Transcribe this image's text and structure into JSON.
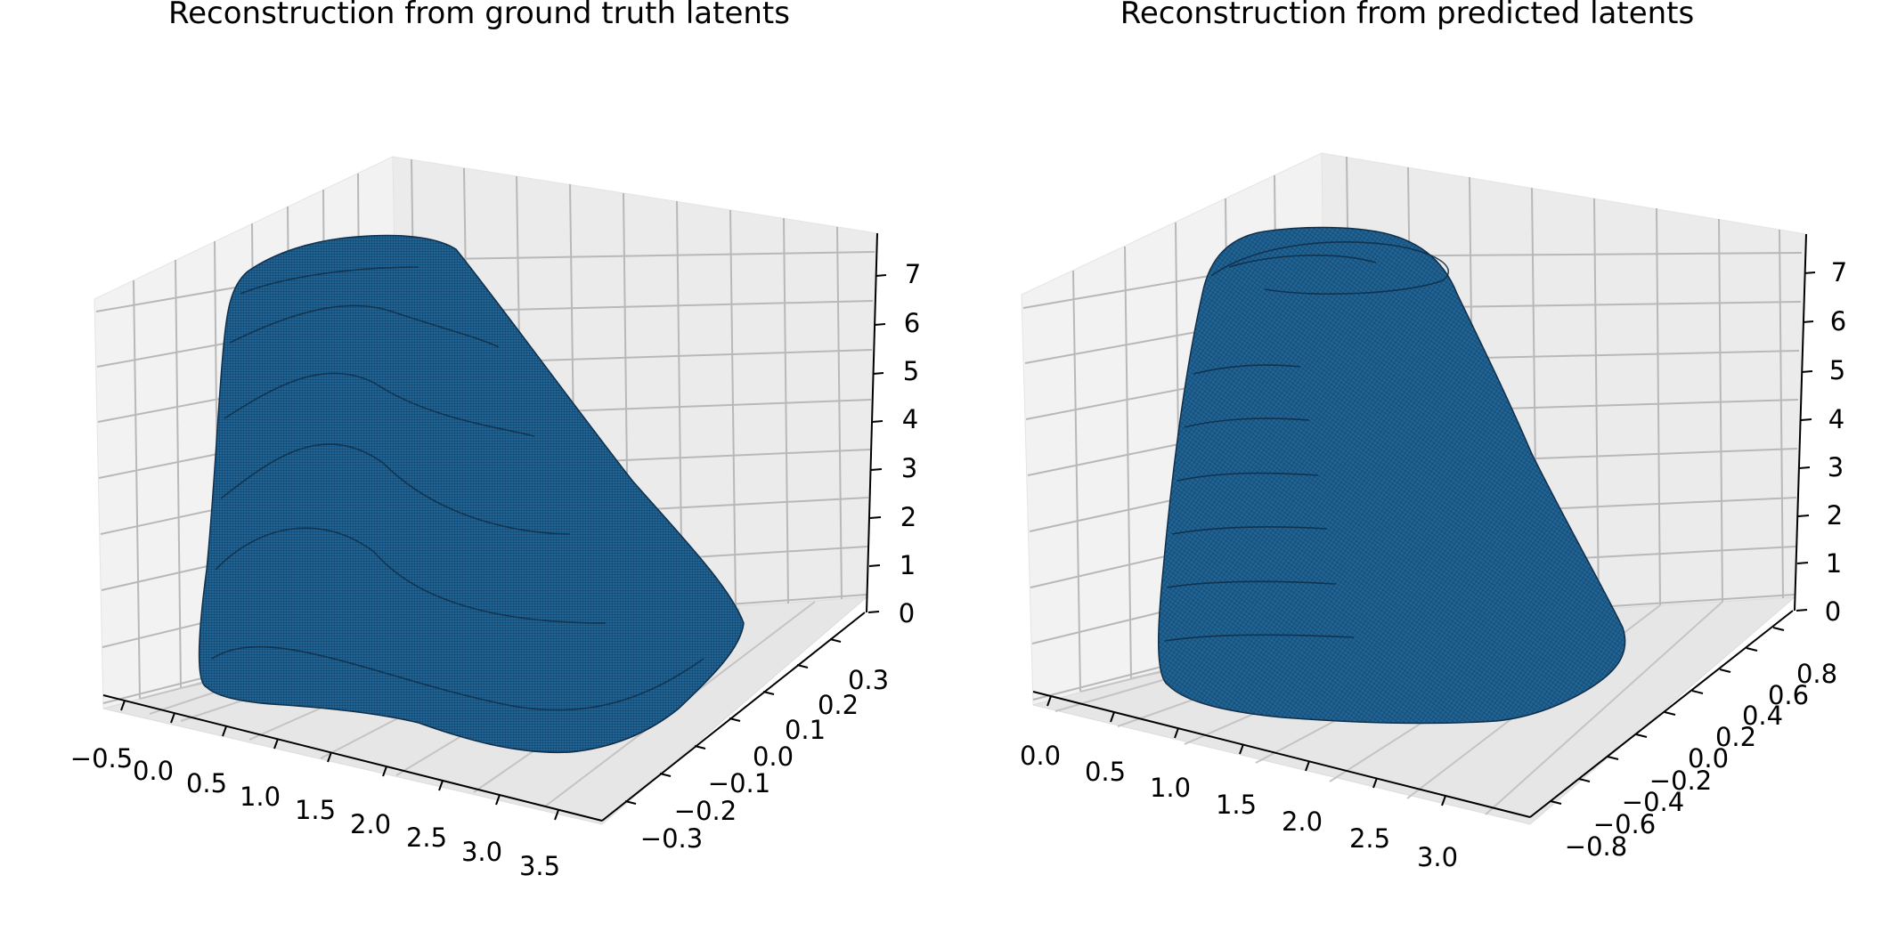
{
  "chart_data": [
    {
      "type": "surface3d",
      "title": "Reconstruction from ground truth latents",
      "xlabel": "",
      "ylabel": "",
      "zlabel": "",
      "x_ticks": [
        "−0.5",
        "0.0",
        "0.5",
        "1.0",
        "1.5",
        "2.0",
        "2.5",
        "3.0",
        "3.5"
      ],
      "y_ticks": [
        "−0.3",
        "−0.2",
        "−0.1",
        "0.0",
        "0.1",
        "0.2",
        "0.3"
      ],
      "z_ticks": [
        "0",
        "1",
        "2",
        "3",
        "4",
        "5",
        "6",
        "7"
      ],
      "xlim": [
        -0.75,
        3.75
      ],
      "ylim": [
        -0.35,
        0.35
      ],
      "zlim": [
        0,
        7.5
      ],
      "grid": true,
      "surface_color": "#1f6495",
      "description_shape": "sloped rounded wedge"
    },
    {
      "type": "surface3d",
      "title": "Reconstruction from predicted latents",
      "xlabel": "",
      "ylabel": "",
      "zlabel": "",
      "x_ticks": [
        "0.0",
        "0.5",
        "1.0",
        "1.5",
        "2.0",
        "2.5",
        "3.0"
      ],
      "y_ticks": [
        "−0.8",
        "−0.6",
        "−0.4",
        "−0.2",
        "0.0",
        "0.2",
        "0.4",
        "0.6",
        "0.8"
      ],
      "z_ticks": [
        "0",
        "1",
        "2",
        "3",
        "4",
        "5",
        "6",
        "7"
      ],
      "xlim": [
        -0.2,
        3.35
      ],
      "ylim": [
        -0.9,
        0.9
      ],
      "zlim": [
        0,
        7.5
      ],
      "grid": true,
      "surface_color": "#1f6495",
      "description_shape": "truncated rounded cone"
    }
  ]
}
